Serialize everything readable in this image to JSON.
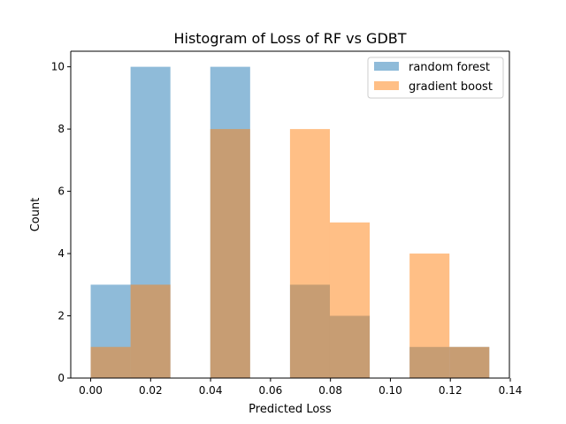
{
  "chart_data": {
    "type": "bar",
    "title": "Histogram of Loss of RF vs GDBT",
    "xlabel": "Predicted Loss",
    "ylabel": "Count",
    "xlim": [
      -0.00665,
      0.1397
    ],
    "ylim": [
      0,
      10.5
    ],
    "xticks": [
      0.0,
      0.02,
      0.04,
      0.06,
      0.08,
      0.1,
      0.12,
      0.14
    ],
    "xtick_labels": [
      "0.00",
      "0.02",
      "0.04",
      "0.06",
      "0.08",
      "0.10",
      "0.12",
      "0.14"
    ],
    "yticks": [
      0,
      2,
      4,
      6,
      8,
      10
    ],
    "ytick_labels": [
      "0",
      "2",
      "4",
      "6",
      "8",
      "10"
    ],
    "bin_edges": [
      0.0,
      0.0133,
      0.0266,
      0.0399,
      0.0532,
      0.0665,
      0.0798,
      0.0931,
      0.1064,
      0.1197,
      0.133
    ],
    "series": [
      {
        "name": "random forest",
        "color": "#1f77b4",
        "alpha": 0.5,
        "values": [
          3,
          10,
          0,
          10,
          0,
          3,
          2,
          0,
          1,
          1
        ]
      },
      {
        "name": "gradient boost",
        "color": "#ff7f0e",
        "alpha": 0.5,
        "values": [
          1,
          3,
          0,
          8,
          0,
          8,
          5,
          0,
          4,
          1
        ]
      }
    ],
    "legend": {
      "position": "top-right"
    },
    "grid": false
  }
}
